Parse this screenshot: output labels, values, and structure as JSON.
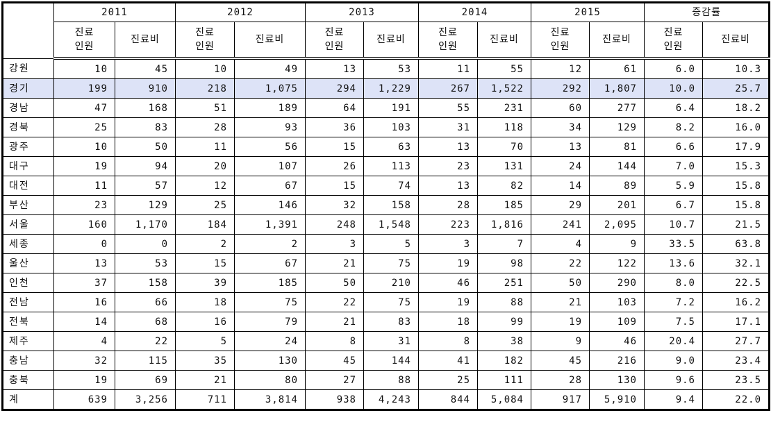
{
  "table": {
    "highlight_color": "#dde3f7",
    "years": [
      "2011",
      "2012",
      "2013",
      "2014",
      "2015",
      "증감률"
    ],
    "sub_headers": {
      "patients": "진료\n인원",
      "cost": "진료비"
    },
    "rows": [
      {
        "region": "강원",
        "values": [
          "10",
          "45",
          "10",
          "49",
          "13",
          "53",
          "11",
          "55",
          "12",
          "61",
          "6.0",
          "10.3"
        ]
      },
      {
        "region": "경기",
        "highlight": true,
        "values": [
          "199",
          "910",
          "218",
          "1,075",
          "294",
          "1,229",
          "267",
          "1,522",
          "292",
          "1,807",
          "10.0",
          "25.7"
        ]
      },
      {
        "region": "경남",
        "values": [
          "47",
          "168",
          "51",
          "189",
          "64",
          "191",
          "55",
          "231",
          "60",
          "277",
          "6.4",
          "18.2"
        ]
      },
      {
        "region": "경북",
        "values": [
          "25",
          "83",
          "28",
          "93",
          "36",
          "103",
          "31",
          "118",
          "34",
          "129",
          "8.2",
          "16.0"
        ]
      },
      {
        "region": "광주",
        "values": [
          "10",
          "50",
          "11",
          "56",
          "15",
          "63",
          "13",
          "70",
          "13",
          "81",
          "6.6",
          "17.9"
        ]
      },
      {
        "region": "대구",
        "values": [
          "19",
          "94",
          "20",
          "107",
          "26",
          "113",
          "23",
          "131",
          "24",
          "144",
          "7.0",
          "15.3"
        ]
      },
      {
        "region": "대전",
        "values": [
          "11",
          "57",
          "12",
          "67",
          "15",
          "74",
          "13",
          "82",
          "14",
          "89",
          "5.9",
          "15.8"
        ]
      },
      {
        "region": "부산",
        "values": [
          "23",
          "129",
          "25",
          "146",
          "32",
          "158",
          "28",
          "185",
          "29",
          "201",
          "6.7",
          "15.8"
        ]
      },
      {
        "region": "서울",
        "values": [
          "160",
          "1,170",
          "184",
          "1,391",
          "248",
          "1,548",
          "223",
          "1,816",
          "241",
          "2,095",
          "10.7",
          "21.5"
        ]
      },
      {
        "region": "세종",
        "values": [
          "0",
          "0",
          "2",
          "2",
          "3",
          "5",
          "3",
          "7",
          "4",
          "9",
          "33.5",
          "63.8"
        ]
      },
      {
        "region": "울산",
        "values": [
          "13",
          "53",
          "15",
          "67",
          "21",
          "75",
          "19",
          "98",
          "22",
          "122",
          "13.6",
          "32.1"
        ]
      },
      {
        "region": "인천",
        "values": [
          "37",
          "158",
          "39",
          "185",
          "50",
          "210",
          "46",
          "251",
          "50",
          "290",
          "8.0",
          "22.5"
        ]
      },
      {
        "region": "전남",
        "values": [
          "16",
          "66",
          "18",
          "75",
          "22",
          "75",
          "19",
          "88",
          "21",
          "103",
          "7.2",
          "16.2"
        ]
      },
      {
        "region": "전북",
        "values": [
          "14",
          "68",
          "16",
          "79",
          "21",
          "83",
          "18",
          "99",
          "19",
          "109",
          "7.5",
          "17.1"
        ]
      },
      {
        "region": "제주",
        "values": [
          "4",
          "22",
          "5",
          "24",
          "8",
          "31",
          "8",
          "38",
          "9",
          "46",
          "20.4",
          "27.7"
        ]
      },
      {
        "region": "충남",
        "values": [
          "32",
          "115",
          "35",
          "130",
          "45",
          "144",
          "41",
          "182",
          "45",
          "216",
          "9.0",
          "23.4"
        ]
      },
      {
        "region": "충북",
        "values": [
          "19",
          "69",
          "21",
          "80",
          "27",
          "88",
          "25",
          "111",
          "28",
          "130",
          "9.6",
          "23.5"
        ]
      },
      {
        "region": "계",
        "values": [
          "639",
          "3,256",
          "711",
          "3,814",
          "938",
          "4,243",
          "844",
          "5,084",
          "917",
          "5,910",
          "9.4",
          "22.0"
        ]
      }
    ]
  }
}
